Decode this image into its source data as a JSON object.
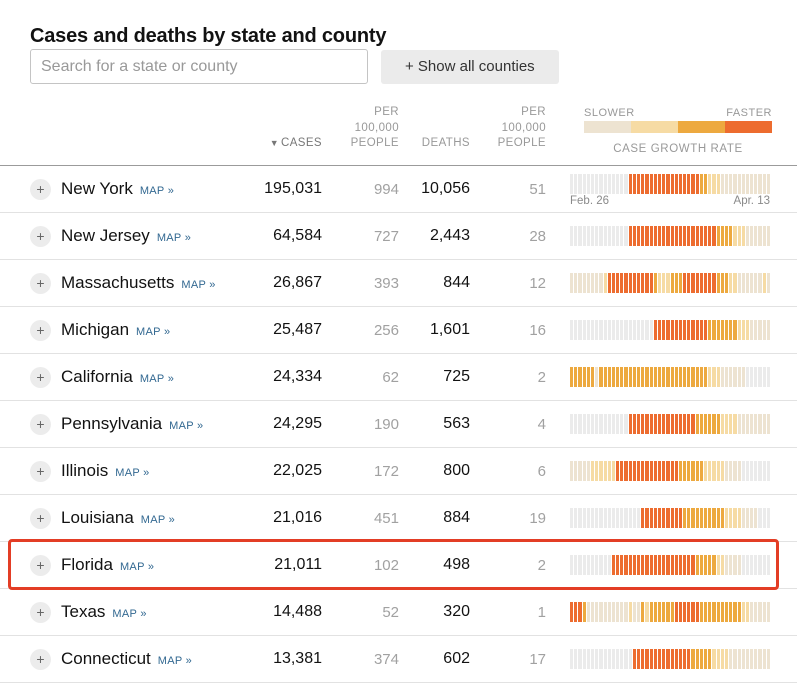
{
  "page": {
    "title": "Cases and deaths by state and county"
  },
  "controls": {
    "search_placeholder": "Search for a state or county",
    "show_all_button": "+ Show all counties"
  },
  "table": {
    "headers": {
      "sort_indicator": "▼",
      "cases": "CASES",
      "per_capita": "PER 100,000 PEOPLE",
      "deaths": "DEATHS"
    },
    "legend": {
      "slower": "SLOWER",
      "faster": "FASTER",
      "label": "CASE GROWTH RATE",
      "colors": [
        "#ede3d1",
        "#f6dba4",
        "#eda93f",
        "#ed6c2f"
      ]
    },
    "map_label": "MAP »",
    "expand_label": "+",
    "palette": {
      "g": "#ebebeb",
      "c": "#ede3d1",
      "l": "#f6dba4",
      "m": "#eda93f",
      "d": "#ed6c2f"
    },
    "highlight_color": "#e33d25",
    "date_axis": {
      "start": "Feb. 26",
      "end": "Apr. 13"
    },
    "rows": [
      {
        "state": "New York",
        "cases": "195,031",
        "per100k_cases": "994",
        "deaths": "10,056",
        "per100k_deaths": "51",
        "growth": "ggggggggggggggdddddddddddddddddmmlllcccccccccccc",
        "dates": {
          "start": "Feb. 26",
          "end": "Apr. 13"
        },
        "highlighted": false
      },
      {
        "state": "New Jersey",
        "cases": "64,584",
        "per100k_cases": "727",
        "deaths": "2,443",
        "per100k_deaths": "28",
        "growth": "ggggggggggggggdddddddddddddddddddddmmmmlllcccccc",
        "highlighted": false
      },
      {
        "state": "Massachusetts",
        "cases": "26,867",
        "per100k_cases": "393",
        "deaths": "844",
        "per100k_deaths": "12",
        "growth": "ccccccccldddddddddddmlllmmmddddddddmmmllcccccclc",
        "highlighted": false
      },
      {
        "state": "Michigan",
        "cases": "25,487",
        "per100k_cases": "256",
        "deaths": "1,601",
        "per100k_deaths": "16",
        "growth": "ggggggggggggggggggggdddddddddddddmmmmmmmlllccccc",
        "highlighted": false
      },
      {
        "state": "California",
        "cases": "24,334",
        "per100k_cases": "62",
        "deaths": "725",
        "per100k_deaths": "2",
        "growth": "mmmmmmcmmmmmmmmmmmmmmmmmmmmmmmmmmlllccccccgggggg",
        "highlighted": false
      },
      {
        "state": "Pennsylvania",
        "cases": "24,295",
        "per100k_cases": "190",
        "deaths": "563",
        "per100k_deaths": "4",
        "growth": "ggggggggggggggddddddddddddddddmmmmmmllllcccccccc",
        "highlighted": false
      },
      {
        "state": "Illinois",
        "cases": "22,025",
        "per100k_cases": "172",
        "deaths": "800",
        "per100k_deaths": "6",
        "growth": "ccccclllllldddddddddddddddmmmmmmlllllccccggggggg",
        "highlighted": false
      },
      {
        "state": "Louisiana",
        "cases": "21,016",
        "per100k_cases": "451",
        "deaths": "884",
        "per100k_deaths": "19",
        "growth": "gggggggggggggggggddddddddddmmmmmmmmmmllllccccggg",
        "highlighted": false
      },
      {
        "state": "Florida",
        "cases": "21,011",
        "per100k_cases": "102",
        "deaths": "498",
        "per100k_deaths": "2",
        "growth": "ggggggggggddddddddddddddddddddmmmmmllccccggggggg",
        "highlighted": true
      },
      {
        "state": "Texas",
        "cases": "14,488",
        "per100k_cases": "52",
        "deaths": "320",
        "per100k_deaths": "1",
        "growth": "dddmcccccccccclccmlmmmmmmddddddmmmmmmmmmmllccccc",
        "highlighted": false
      },
      {
        "state": "Connecticut",
        "cases": "13,381",
        "per100k_cases": "374",
        "deaths": "602",
        "per100k_deaths": "17",
        "growth": "gggggggggggggggddddddddddddddmmmmmllllcccccccccc",
        "highlighted": false
      }
    ]
  }
}
